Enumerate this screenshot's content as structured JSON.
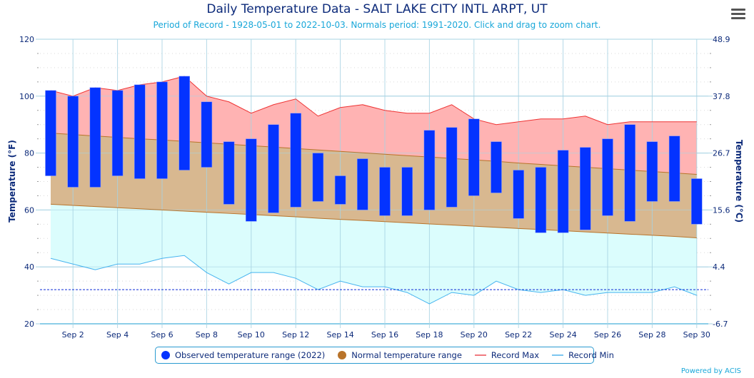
{
  "header": {
    "title": "Daily Temperature Data - SALT LAKE CITY INTL ARPT, UT",
    "subtitle": "Period of Record - 1928-05-01 to 2022-10-03. Normals period: 1991-2020. Click and drag to zoom chart.",
    "menu_icon": "hamburger-menu-icon"
  },
  "footer": {
    "credit": "Powered by ACIS"
  },
  "colors": {
    "observed": "#0433ff",
    "normal_fill": "#d8b890",
    "normal_line": "#b8732a",
    "record_max_fill": "#ffb3b3",
    "record_max_line": "#ee3333",
    "record_min_fill": "#dbfdfd",
    "record_min_line": "#47b4ef",
    "freeze_line": "#0b2bd6",
    "axis_text": "#0c2a7a",
    "grid": "#a7d3e3"
  },
  "chart_data": {
    "type": "bar",
    "title": "Daily Temperature Data - SALT LAKE CITY INTL ARPT, UT",
    "subtitle": "Period of Record - 1928-05-01 to 2022-10-03. Normals period: 1991-2020. Click and drag to zoom chart.",
    "xlabel": "",
    "ylabel": "Temperature (°F)",
    "ylabel_right": "Temperature (°C)",
    "ylim": [
      20,
      120
    ],
    "yticks": [
      20,
      40,
      60,
      80,
      100,
      120
    ],
    "yticks_right": [
      "-6.7",
      "4.4",
      "15.6",
      "26.7",
      "37.8",
      "48.9"
    ],
    "xticks": [
      "Sep 2",
      "Sep 4",
      "Sep 6",
      "Sep 8",
      "Sep 10",
      "Sep 12",
      "Sep 14",
      "Sep 16",
      "Sep 18",
      "Sep 20",
      "Sep 22",
      "Sep 24",
      "Sep 26",
      "Sep 28",
      "Sep 30"
    ],
    "days": [
      1,
      2,
      3,
      4,
      5,
      6,
      7,
      8,
      9,
      10,
      11,
      12,
      13,
      14,
      15,
      16,
      17,
      18,
      19,
      20,
      21,
      22,
      23,
      24,
      25,
      26,
      27,
      28,
      29,
      30
    ],
    "freeze_line": 32,
    "grid": true,
    "legend_position": "bottom-center",
    "series": [
      {
        "name": "Observed temperature range (2022)",
        "kind": "range-bar",
        "high": [
          102,
          100,
          103,
          102,
          104,
          105,
          107,
          98,
          84,
          85,
          90,
          94,
          80,
          72,
          78,
          75,
          75,
          88,
          89,
          92,
          84,
          74,
          75,
          81,
          82,
          85,
          90,
          84,
          86,
          71
        ],
        "low": [
          72,
          68,
          68,
          72,
          71,
          71,
          74,
          75,
          62,
          56,
          59,
          61,
          63,
          62,
          60,
          58,
          58,
          60,
          61,
          65,
          66,
          57,
          52,
          52,
          53,
          58,
          56,
          63,
          63,
          55
        ]
      },
      {
        "name": "Normal temperature range",
        "kind": "range-area",
        "high": [
          87,
          86.5,
          86,
          85.5,
          85,
          84.6,
          84.1,
          83.6,
          83.1,
          82.6,
          82.1,
          81.6,
          81.1,
          80.6,
          80.1,
          79.6,
          79.1,
          78.6,
          78.1,
          77.6,
          77.1,
          76.5,
          76,
          75.5,
          75,
          74.5,
          74,
          73.5,
          73,
          72.5
        ],
        "low": [
          62,
          61.6,
          61.2,
          60.8,
          60.4,
          60,
          59.6,
          59.2,
          58.8,
          58.4,
          58,
          57.6,
          57.1,
          56.7,
          56.3,
          55.9,
          55.5,
          55.1,
          54.7,
          54.3,
          53.9,
          53.5,
          53.1,
          52.7,
          52.3,
          51.9,
          51.5,
          51.1,
          50.7,
          50.2
        ]
      },
      {
        "name": "Record Max",
        "kind": "line",
        "values": [
          102,
          100,
          103,
          102,
          104,
          105,
          107,
          100,
          98,
          94,
          97,
          99,
          93,
          96,
          97,
          95,
          94,
          94,
          97,
          92,
          90,
          91,
          92,
          92,
          93,
          90,
          91,
          91,
          91,
          91
        ]
      },
      {
        "name": "Record Min",
        "kind": "line",
        "values": [
          43,
          41,
          39,
          41,
          41,
          43,
          44,
          38,
          34,
          38,
          38,
          36,
          32,
          35,
          33,
          33,
          31,
          27,
          31,
          30,
          35,
          32,
          31,
          32,
          30,
          31,
          31,
          31,
          33,
          30
        ]
      }
    ]
  },
  "legend": [
    {
      "label": "Observed temperature range (2022)",
      "symbol": "dot",
      "color_key": "observed"
    },
    {
      "label": "Normal temperature range",
      "symbol": "dot",
      "color_key": "normal_line"
    },
    {
      "label": "Record Max",
      "symbol": "line",
      "color_key": "record_max_line"
    },
    {
      "label": "Record Min",
      "symbol": "line",
      "color_key": "record_min_line"
    }
  ]
}
